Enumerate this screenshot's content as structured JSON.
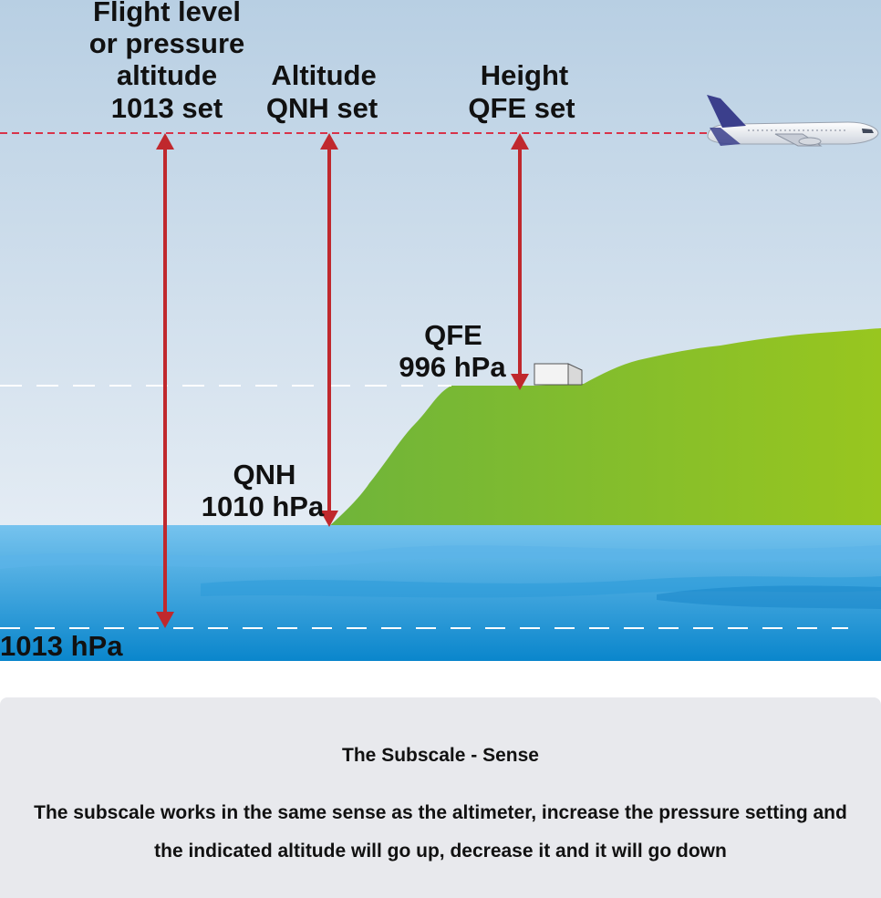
{
  "diagram": {
    "labels": {
      "flight_level": [
        "Flight level",
        "or pressure",
        "altitude",
        "1013 set"
      ],
      "altitude": [
        "Altitude",
        "QNH set"
      ],
      "height": [
        "Height",
        "QFE set"
      ],
      "qfe": [
        "QFE",
        "996 hPa"
      ],
      "qnh": [
        "QNH",
        "1010 hPa"
      ],
      "standard": "1013 hPa"
    },
    "colors": {
      "sky_top": "#b8cfe3",
      "sky_bottom": "#e4ecf4",
      "sea_top": "#76c3ee",
      "sea_bottom": "#0a86cc",
      "land_dark": "#6fb43a",
      "land_light": "#98c61f",
      "arrow": "#c0282d",
      "flight_line": "#d8334a",
      "reference_line": "#ffffff"
    }
  },
  "caption": {
    "title": "The Subscale - Sense",
    "body": "The subscale works in the same sense as the altimeter, increase the pressure setting and the indicated altitude will go up, decrease it and it will go down"
  }
}
